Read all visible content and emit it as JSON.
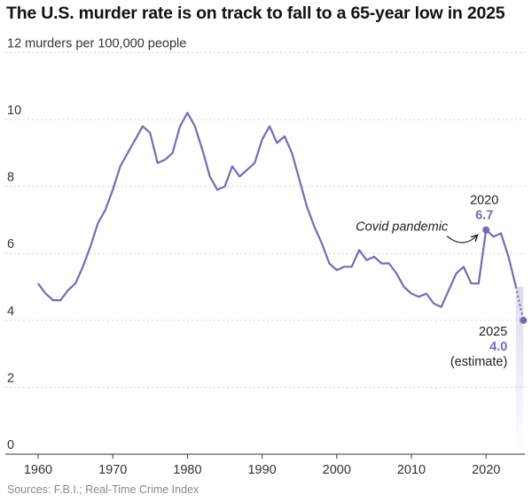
{
  "chart_data": {
    "type": "line",
    "title": "The U.S. murder rate is on track to fall to a 65-year low in 2025",
    "ylabel": "murders per 100,000 people",
    "xlim": [
      1958,
      2025.5
    ],
    "ylim": [
      0,
      12
    ],
    "x_ticks": [
      1960,
      1970,
      1980,
      1990,
      2000,
      2010,
      2020
    ],
    "y_ticks": [
      0,
      2,
      4,
      6,
      8,
      10,
      12
    ],
    "y_tick_labels": [
      "0",
      "2",
      "4",
      "6",
      "8",
      "10",
      "12 murders per 100,000 people"
    ],
    "grid": "horizontal dashed",
    "accent_color": "#7a68b8",
    "series": [
      {
        "x": [
          1960,
          1961,
          1962,
          1963,
          1964,
          1965,
          1966,
          1967,
          1968,
          1969,
          1970,
          1971,
          1972,
          1973,
          1974,
          1975,
          1976,
          1977,
          1978,
          1979,
          1980,
          1981,
          1982,
          1983,
          1984,
          1985,
          1986,
          1987,
          1988,
          1989,
          1990,
          1991,
          1992,
          1993,
          1994,
          1995,
          1996,
          1997,
          1998,
          1999,
          2000,
          2001,
          2002,
          2003,
          2004,
          2005,
          2006,
          2007,
          2008,
          2009,
          2010,
          2011,
          2012,
          2013,
          2014,
          2015,
          2016,
          2017,
          2018,
          2019,
          2020,
          2021,
          2022,
          2023,
          2024
        ],
        "values": [
          5.1,
          4.8,
          4.6,
          4.6,
          4.9,
          5.1,
          5.6,
          6.2,
          6.9,
          7.3,
          7.9,
          8.6,
          9.0,
          9.4,
          9.8,
          9.6,
          8.7,
          8.8,
          9.0,
          9.8,
          10.2,
          9.8,
          9.1,
          8.3,
          7.9,
          8.0,
          8.6,
          8.3,
          8.5,
          8.7,
          9.4,
          9.8,
          9.3,
          9.5,
          9.0,
          8.2,
          7.4,
          6.8,
          6.3,
          5.7,
          5.5,
          5.6,
          5.6,
          6.1,
          5.8,
          5.9,
          5.7,
          5.7,
          5.4,
          5.0,
          4.8,
          4.7,
          4.8,
          4.5,
          4.4,
          4.9,
          5.4,
          5.6,
          5.1,
          5.1,
          6.7,
          6.5,
          6.6,
          5.9,
          5.0
        ]
      },
      {
        "name": "estimate",
        "x": [
          2024,
          2025
        ],
        "values": [
          5.0,
          4.0
        ]
      }
    ],
    "annotations": {
      "covid_label": "Covid pandemic",
      "peak_year": "2020",
      "peak_value": "6.7",
      "est_year": "2025",
      "est_value": "4.0",
      "est_note": "(estimate)"
    },
    "source": "Sources: F.B.I.; Real-Time Crime Index"
  }
}
